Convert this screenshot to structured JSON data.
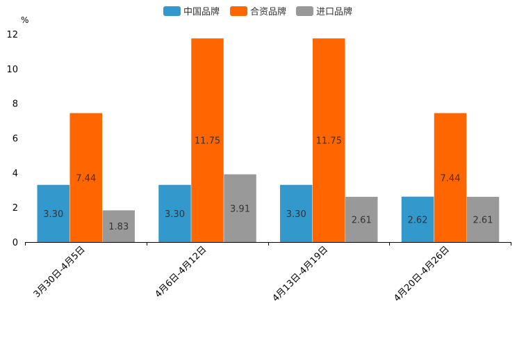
{
  "chart_data": {
    "type": "bar",
    "unit_label": "%",
    "categories": [
      "3月30日-4月5日",
      "4月6日-4月12日",
      "4月13日-4月19日",
      "4月20日-4月26日"
    ],
    "series": [
      {
        "name": "中国品牌",
        "color": "#3399cc",
        "values": [
          3.3,
          3.3,
          3.3,
          2.62
        ],
        "labels": [
          "3.30",
          "3.30",
          "3.30",
          "2.62"
        ]
      },
      {
        "name": "合资品牌",
        "color": "#ff6600",
        "values": [
          7.44,
          11.75,
          11.75,
          7.44
        ],
        "labels": [
          "7.44",
          "11.75",
          "11.75",
          "7.44"
        ]
      },
      {
        "name": "进口品牌",
        "color": "#999999",
        "values": [
          1.83,
          3.91,
          2.61,
          2.61
        ],
        "labels": [
          "1.83",
          "3.91",
          "2.61",
          "2.61"
        ]
      }
    ],
    "ylim": [
      0,
      12
    ],
    "yticks": [
      "0",
      "2",
      "4",
      "6",
      "8",
      "10",
      "12"
    ],
    "legend_position": "top-center",
    "grid": false
  }
}
